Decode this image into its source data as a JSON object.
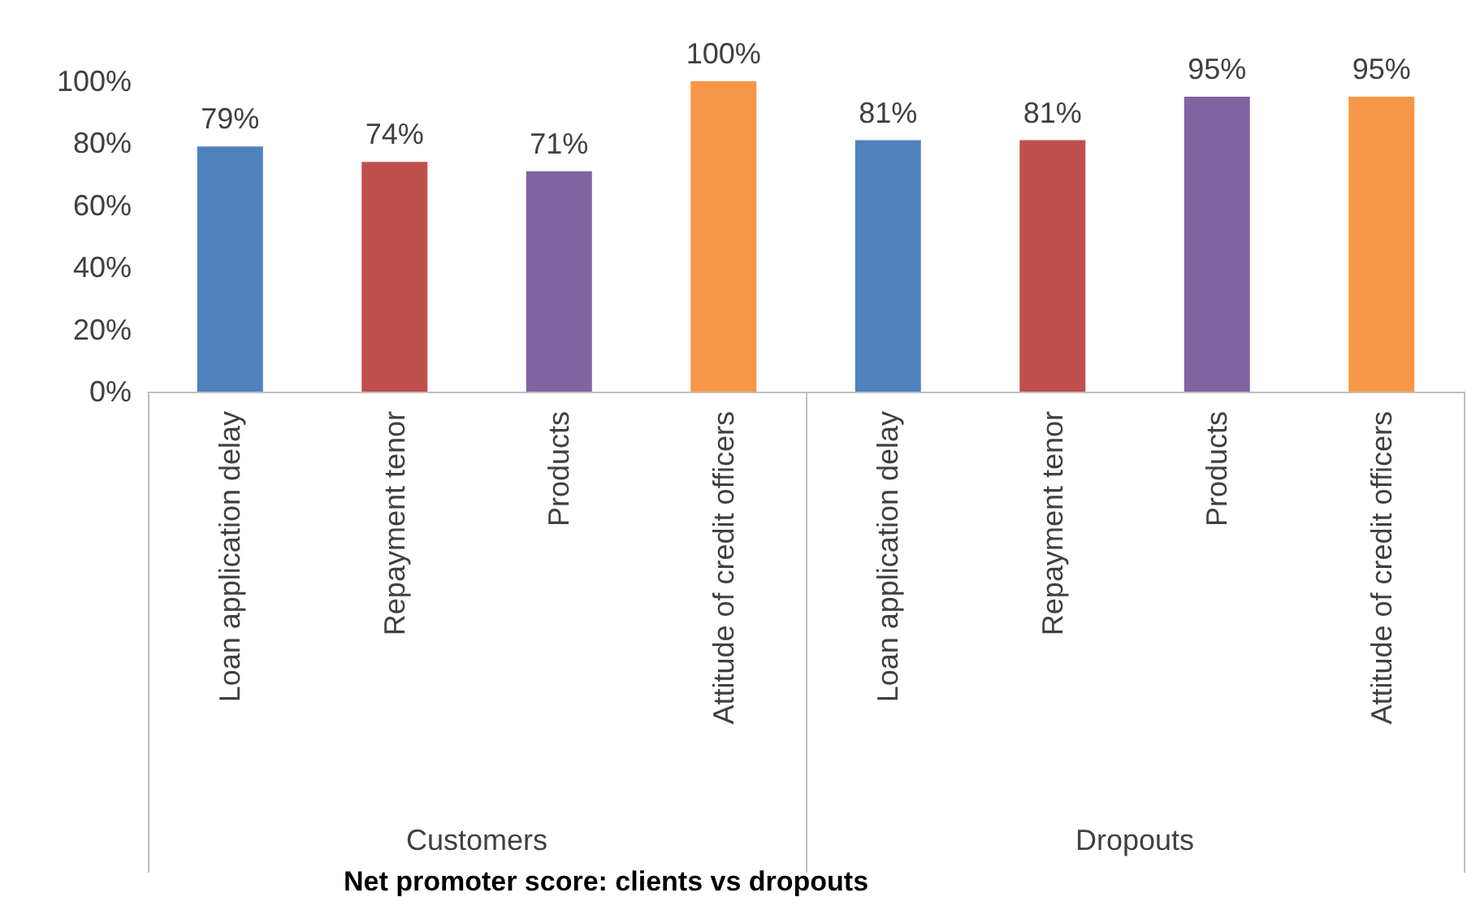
{
  "chart_data": {
    "type": "bar",
    "title": "Net promoter score: clients vs dropouts",
    "categories": [
      "Loan application delay",
      "Repayment tenor",
      "Products",
      "Attitude of credit officers",
      "Loan application delay",
      "Repayment tenor",
      "Products",
      "Attitude of credit officers"
    ],
    "values": [
      79,
      74,
      71,
      100,
      81,
      81,
      95,
      95
    ],
    "colors": [
      "#4f81bd",
      "#c0504d",
      "#8064a2",
      "#f79646",
      "#4f81bd",
      "#c0504d",
      "#8064a2",
      "#f79646"
    ],
    "value_labels": [
      "79%",
      "74%",
      "71%",
      "100%",
      "81%",
      "81%",
      "95%",
      "95%"
    ],
    "ylim": [
      0,
      100
    ],
    "yticks": [
      {
        "value": 0,
        "label": "0%"
      },
      {
        "value": 20,
        "label": "20%"
      },
      {
        "value": 40,
        "label": "40%"
      },
      {
        "value": 60,
        "label": "60%"
      },
      {
        "value": 80,
        "label": "80%"
      },
      {
        "value": 100,
        "label": "100%"
      }
    ],
    "annotations": [
      "Customers",
      "Dropouts"
    ]
  }
}
